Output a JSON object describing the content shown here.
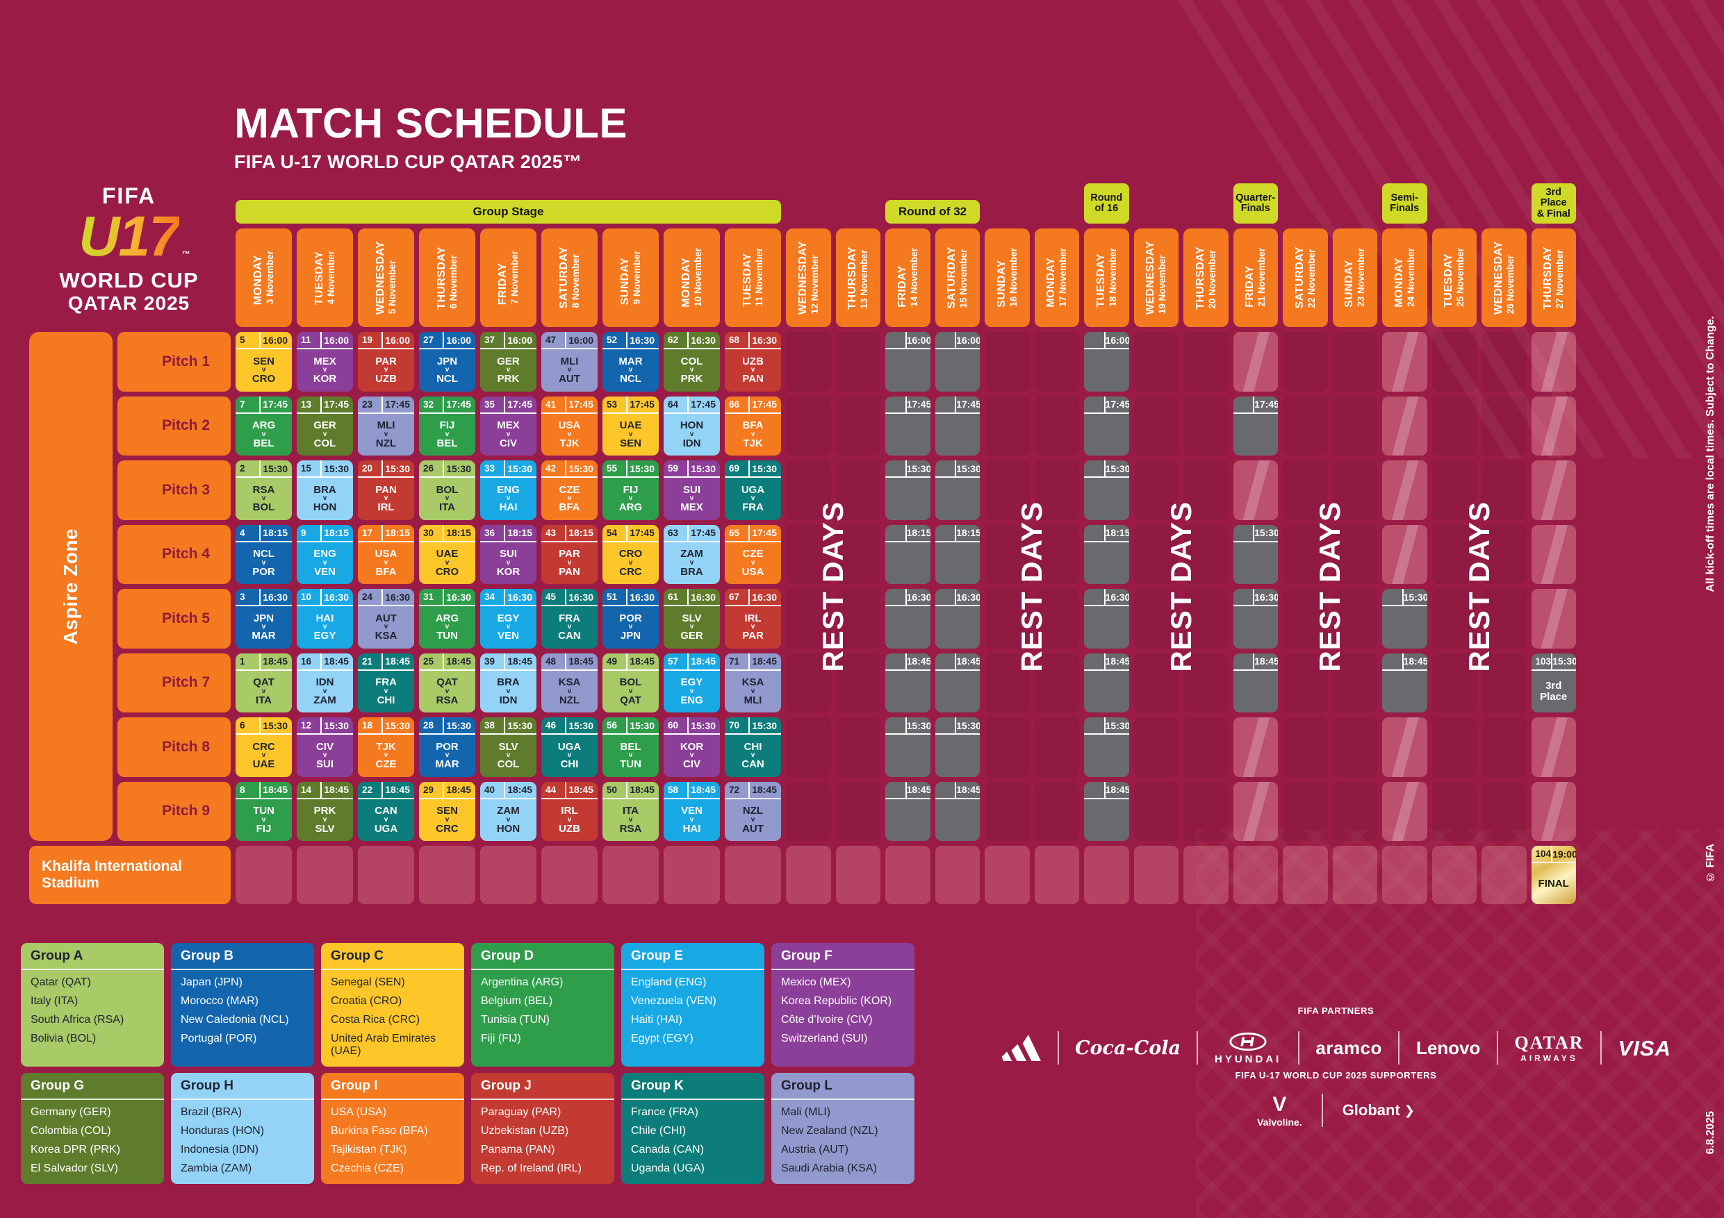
{
  "page": {
    "title": "MATCH SCHEDULE",
    "subtitle": "FIFA U-17 WORLD CUP QATAR 2025™"
  },
  "logo": {
    "fifa": "FIFA",
    "u17": "U17",
    "tm": "™",
    "line1": "WORLD CUP",
    "line2": "QATAR 2025"
  },
  "notes": {
    "kickoff": "All kick-off times are local times. Subject to Change.",
    "copyright": "© FIFA",
    "version": "6.8.2025"
  },
  "group_colors": {
    "A": {
      "bg": "#a8ca67",
      "fg": "#202433"
    },
    "B": {
      "bg": "#1366ae",
      "fg": "#ffffff"
    },
    "C": {
      "bg": "#ffc62a",
      "fg": "#202433"
    },
    "D": {
      "bg": "#2f9e4b",
      "fg": "#ffffff"
    },
    "E": {
      "bg": "#18a9e5",
      "fg": "#ffffff"
    },
    "F": {
      "bg": "#8c3f98",
      "fg": "#ffffff"
    },
    "G": {
      "bg": "#5e7c2b",
      "fg": "#ffffff"
    },
    "H": {
      "bg": "#93d3f5",
      "fg": "#202433"
    },
    "I": {
      "bg": "#f5791f",
      "fg": "#ffffff"
    },
    "J": {
      "bg": "#c23a31",
      "fg": "#ffffff"
    },
    "K": {
      "bg": "#0c7d7a",
      "fg": "#ffffff"
    },
    "L": {
      "bg": "#9299cc",
      "fg": "#202433"
    }
  },
  "schedule": {
    "zone_label": "Aspire Zone",
    "stadium_label": "Khalifa International Stadium",
    "pitches": [
      "Pitch 1",
      "Pitch 2",
      "Pitch 3",
      "Pitch 4",
      "Pitch 5",
      "Pitch 7",
      "Pitch 8",
      "Pitch 9"
    ],
    "vs_label": "v",
    "days": [
      {
        "day": "MONDAY",
        "date": "3 November"
      },
      {
        "day": "TUESDAY",
        "date": "4 November"
      },
      {
        "day": "WEDNESDAY",
        "date": "5 November"
      },
      {
        "day": "THURSDAY",
        "date": "6 November"
      },
      {
        "day": "FRIDAY",
        "date": "7 November"
      },
      {
        "day": "SATURDAY",
        "date": "8 November"
      },
      {
        "day": "SUNDAY",
        "date": "9 November"
      },
      {
        "day": "MONDAY",
        "date": "10 November"
      },
      {
        "day": "TUESDAY",
        "date": "11 November"
      },
      {
        "day": "WEDNESDAY",
        "date": "12 November"
      },
      {
        "day": "THURSDAY",
        "date": "13 November"
      },
      {
        "day": "FRIDAY",
        "date": "14 November"
      },
      {
        "day": "SATURDAY",
        "date": "15 November"
      },
      {
        "day": "SUNDAY",
        "date": "16 November"
      },
      {
        "day": "MONDAY",
        "date": "17 November"
      },
      {
        "day": "TUESDAY",
        "date": "18 November"
      },
      {
        "day": "WEDNESDAY",
        "date": "19 November"
      },
      {
        "day": "THURSDAY",
        "date": "20 November"
      },
      {
        "day": "FRIDAY",
        "date": "21 November"
      },
      {
        "day": "SATURDAY",
        "date": "22 November"
      },
      {
        "day": "SUNDAY",
        "date": "23 November"
      },
      {
        "day": "MONDAY",
        "date": "24 November"
      },
      {
        "day": "TUESDAY",
        "date": "25 November"
      },
      {
        "day": "WEDNESDAY",
        "date": "26 November"
      },
      {
        "day": "THURSDAY",
        "date": "27 November"
      }
    ],
    "stages": [
      {
        "label": "Group Stage",
        "day": 0,
        "span": 9,
        "tall": false
      },
      {
        "label": "Round of 32",
        "day": 11,
        "span": 2,
        "tall": false
      },
      {
        "label": "Round\nof 16",
        "day": 15,
        "span": 1,
        "tall": true
      },
      {
        "label": "Quarter-\nFinals",
        "day": 18,
        "span": 1,
        "tall": true
      },
      {
        "label": "Semi-\nFinals",
        "day": 21,
        "span": 1,
        "tall": true
      },
      {
        "label": "3rd Place\n& Final",
        "day": 24,
        "span": 1,
        "tall": true
      }
    ],
    "matches": [
      [
        5,
        "16:00",
        "SEN",
        "CRO",
        "C",
        0,
        0
      ],
      [
        7,
        "17:45",
        "ARG",
        "BEL",
        "D",
        0,
        1
      ],
      [
        2,
        "15:30",
        "RSA",
        "BOL",
        "A",
        0,
        2
      ],
      [
        4,
        "18:15",
        "NCL",
        "POR",
        "B",
        0,
        3
      ],
      [
        3,
        "16:30",
        "JPN",
        "MAR",
        "B",
        0,
        4
      ],
      [
        1,
        "18:45",
        "QAT",
        "ITA",
        "A",
        0,
        5
      ],
      [
        6,
        "15:30",
        "CRC",
        "UAE",
        "C",
        0,
        6
      ],
      [
        8,
        "18:45",
        "TUN",
        "FIJ",
        "D",
        0,
        7
      ],
      [
        11,
        "16:00",
        "MEX",
        "KOR",
        "F",
        1,
        0
      ],
      [
        13,
        "17:45",
        "GER",
        "COL",
        "G",
        1,
        1
      ],
      [
        15,
        "15:30",
        "BRA",
        "HON",
        "H",
        1,
        2
      ],
      [
        9,
        "18:15",
        "ENG",
        "VEN",
        "E",
        1,
        3
      ],
      [
        10,
        "16:30",
        "HAI",
        "EGY",
        "E",
        1,
        4
      ],
      [
        16,
        "18:45",
        "IDN",
        "ZAM",
        "H",
        1,
        5
      ],
      [
        12,
        "15:30",
        "CIV",
        "SUI",
        "F",
        1,
        6
      ],
      [
        14,
        "18:45",
        "PRK",
        "SLV",
        "G",
        1,
        7
      ],
      [
        19,
        "16:00",
        "PAR",
        "UZB",
        "J",
        2,
        0
      ],
      [
        23,
        "17:45",
        "MLI",
        "NZL",
        "L",
        2,
        1
      ],
      [
        20,
        "15:30",
        "PAN",
        "IRL",
        "J",
        2,
        2
      ],
      [
        17,
        "18:15",
        "USA",
        "BFA",
        "I",
        2,
        3
      ],
      [
        24,
        "16:30",
        "AUT",
        "KSA",
        "L",
        2,
        4
      ],
      [
        21,
        "18:45",
        "FRA",
        "CHI",
        "K",
        2,
        5
      ],
      [
        18,
        "15:30",
        "TJK",
        "CZE",
        "I",
        2,
        6
      ],
      [
        22,
        "18:45",
        "CAN",
        "UGA",
        "K",
        2,
        7
      ],
      [
        27,
        "16:00",
        "JPN",
        "NCL",
        "B",
        3,
        0
      ],
      [
        32,
        "17:45",
        "FIJ",
        "BEL",
        "D",
        3,
        1
      ],
      [
        26,
        "15:30",
        "BOL",
        "ITA",
        "A",
        3,
        2
      ],
      [
        30,
        "18:15",
        "UAE",
        "CRO",
        "C",
        3,
        3
      ],
      [
        31,
        "16:30",
        "ARG",
        "TUN",
        "D",
        3,
        4
      ],
      [
        25,
        "18:45",
        "QAT",
        "RSA",
        "A",
        3,
        5
      ],
      [
        28,
        "15:30",
        "POR",
        "MAR",
        "B",
        3,
        6
      ],
      [
        29,
        "18:45",
        "SEN",
        "CRC",
        "C",
        3,
        7
      ],
      [
        37,
        "16:00",
        "GER",
        "PRK",
        "G",
        4,
        0
      ],
      [
        35,
        "17:45",
        "MEX",
        "CIV",
        "F",
        4,
        1
      ],
      [
        33,
        "15:30",
        "ENG",
        "HAI",
        "E",
        4,
        2
      ],
      [
        36,
        "18:15",
        "SUI",
        "KOR",
        "F",
        4,
        3
      ],
      [
        34,
        "16:30",
        "EGY",
        "VEN",
        "E",
        4,
        4
      ],
      [
        39,
        "18:45",
        "BRA",
        "IDN",
        "H",
        4,
        5
      ],
      [
        38,
        "15:30",
        "SLV",
        "COL",
        "G",
        4,
        6
      ],
      [
        40,
        "18:45",
        "ZAM",
        "HON",
        "H",
        4,
        7
      ],
      [
        47,
        "16:00",
        "MLI",
        "AUT",
        "L",
        5,
        0
      ],
      [
        41,
        "17:45",
        "USA",
        "TJK",
        "I",
        5,
        1
      ],
      [
        42,
        "15:30",
        "CZE",
        "BFA",
        "I",
        5,
        2
      ],
      [
        43,
        "18:15",
        "PAR",
        "PAN",
        "J",
        5,
        3
      ],
      [
        45,
        "16:30",
        "FRA",
        "CAN",
        "K",
        5,
        4
      ],
      [
        48,
        "18:45",
        "KSA",
        "NZL",
        "L",
        5,
        5
      ],
      [
        46,
        "15:30",
        "UGA",
        "CHI",
        "K",
        5,
        6
      ],
      [
        44,
        "18:45",
        "IRL",
        "UZB",
        "J",
        5,
        7
      ],
      [
        52,
        "16:30",
        "MAR",
        "NCL",
        "B",
        6,
        0
      ],
      [
        53,
        "17:45",
        "UAE",
        "SEN",
        "C",
        6,
        1
      ],
      [
        55,
        "15:30",
        "FIJ",
        "ARG",
        "D",
        6,
        2
      ],
      [
        54,
        "17:45",
        "CRO",
        "CRC",
        "C",
        6,
        3
      ],
      [
        51,
        "16:30",
        "POR",
        "JPN",
        "B",
        6,
        4
      ],
      [
        49,
        "18:45",
        "BOL",
        "QAT",
        "A",
        6,
        5
      ],
      [
        56,
        "15:30",
        "BEL",
        "TUN",
        "D",
        6,
        6
      ],
      [
        50,
        "18:45",
        "ITA",
        "RSA",
        "A",
        6,
        7
      ],
      [
        62,
        "16:30",
        "COL",
        "PRK",
        "G",
        7,
        0
      ],
      [
        64,
        "17:45",
        "HON",
        "IDN",
        "H",
        7,
        1
      ],
      [
        59,
        "15:30",
        "SUI",
        "MEX",
        "F",
        7,
        2
      ],
      [
        63,
        "17:45",
        "ZAM",
        "BRA",
        "H",
        7,
        3
      ],
      [
        61,
        "16:30",
        "SLV",
        "GER",
        "G",
        7,
        4
      ],
      [
        57,
        "18:45",
        "EGY",
        "ENG",
        "E",
        7,
        5
      ],
      [
        60,
        "15:30",
        "KOR",
        "CIV",
        "F",
        7,
        6
      ],
      [
        58,
        "18:45",
        "VEN",
        "HAI",
        "E",
        7,
        7
      ],
      [
        68,
        "16:30",
        "UZB",
        "PAN",
        "J",
        8,
        0
      ],
      [
        66,
        "17:45",
        "BFA",
        "TJK",
        "I",
        8,
        1
      ],
      [
        69,
        "15:30",
        "UGA",
        "FRA",
        "K",
        8,
        2
      ],
      [
        65,
        "17:45",
        "CZE",
        "USA",
        "I",
        8,
        3
      ],
      [
        67,
        "16:30",
        "IRL",
        "PAR",
        "J",
        8,
        4
      ],
      [
        71,
        "18:45",
        "KSA",
        "MLI",
        "L",
        8,
        5
      ],
      [
        70,
        "15:30",
        "CHI",
        "CAN",
        "K",
        8,
        6
      ],
      [
        72,
        "18:45",
        "NZL",
        "AUT",
        "L",
        8,
        7
      ]
    ],
    "tbd": {
      "full_days": [
        11,
        12,
        15
      ],
      "times": [
        "16:00",
        "17:45",
        "15:30",
        "18:15",
        "16:30",
        "18:45",
        "15:30",
        "18:45"
      ],
      "partial": [
        {
          "day": 18,
          "cells": [
            [
              1,
              "17:45"
            ],
            [
              3,
              "15:30"
            ],
            [
              4,
              "16:30"
            ],
            [
              5,
              "18:45"
            ]
          ]
        },
        {
          "day": 21,
          "cells": [
            [
              4,
              "15:30"
            ],
            [
              5,
              "18:45"
            ]
          ]
        }
      ]
    },
    "special": {
      "third_place": {
        "day": 24,
        "pitch": 5,
        "n": 103,
        "time": "15:30",
        "label": "3rd Place"
      },
      "final": {
        "day": 24,
        "n": 104,
        "time": "19:00",
        "label": "FINAL"
      }
    },
    "rest_days": {
      "label": "REST DAYS",
      "pairs": [
        [
          9,
          10
        ],
        [
          13,
          14
        ],
        [
          16,
          17
        ],
        [
          19,
          20
        ],
        [
          22,
          23
        ]
      ]
    },
    "highlight_days": [
      18,
      21,
      24
    ]
  },
  "groups": [
    {
      "name": "Group A",
      "color": "A",
      "teams": [
        "Qatar (QAT)",
        "Italy (ITA)",
        "South Africa (RSA)",
        "Bolivia (BOL)"
      ]
    },
    {
      "name": "Group B",
      "color": "B",
      "teams": [
        "Japan (JPN)",
        "Morocco (MAR)",
        "New Caledonia (NCL)",
        "Portugal (POR)"
      ]
    },
    {
      "name": "Group C",
      "color": "C",
      "teams": [
        "Senegal (SEN)",
        "Croatia (CRO)",
        "Costa Rica (CRC)",
        "United Arab Emirates (UAE)"
      ]
    },
    {
      "name": "Group D",
      "color": "D",
      "teams": [
        "Argentina (ARG)",
        "Belgium (BEL)",
        "Tunisia (TUN)",
        "Fiji (FIJ)"
      ]
    },
    {
      "name": "Group E",
      "color": "E",
      "teams": [
        "England (ENG)",
        "Venezuela (VEN)",
        "Haiti (HAI)",
        "Egypt (EGY)"
      ]
    },
    {
      "name": "Group F",
      "color": "F",
      "teams": [
        "Mexico (MEX)",
        "Korea Republic (KOR)",
        "Côte d’Ivoire (CIV)",
        "Switzerland (SUI)"
      ]
    },
    {
      "name": "Group G",
      "color": "G",
      "teams": [
        "Germany (GER)",
        "Colombia (COL)",
        "Korea DPR (PRK)",
        "El Salvador (SLV)"
      ]
    },
    {
      "name": "Group H",
      "color": "H",
      "teams": [
        "Brazil (BRA)",
        "Honduras (HON)",
        "Indonesia (IDN)",
        "Zambia (ZAM)"
      ]
    },
    {
      "name": "Group I",
      "color": "I",
      "teams": [
        "USA (USA)",
        "Burkina Faso (BFA)",
        "Tajikistan (TJK)",
        "Czechia (CZE)"
      ]
    },
    {
      "name": "Group J",
      "color": "J",
      "teams": [
        "Paraguay (PAR)",
        "Uzbekistan (UZB)",
        "Panama (PAN)",
        "Rep. of Ireland (IRL)"
      ]
    },
    {
      "name": "Group K",
      "color": "K",
      "teams": [
        "France (FRA)",
        "Chile (CHI)",
        "Canada (CAN)",
        "Uganda (UGA)"
      ]
    },
    {
      "name": "Group L",
      "color": "L",
      "teams": [
        "Mali (MLI)",
        "New Zealand (NZL)",
        "Austria (AUT)",
        "Saudi Arabia (KSA)"
      ]
    }
  ],
  "sponsors": {
    "partners_label": "FIFA PARTNERS",
    "partners": [
      "adidas",
      "Coca-Cola",
      "HYUNDAI",
      "aramco",
      "Lenovo",
      "QATAR AIRWAYS",
      "VISA"
    ],
    "qatar_airways_lines": [
      "QATAR",
      "AIRWAYS"
    ],
    "supporters_label": "FIFA U-17 WORLD CUP 2025 SUPPORTERS",
    "supporters": [
      "Valvoline.",
      "Globant"
    ]
  }
}
